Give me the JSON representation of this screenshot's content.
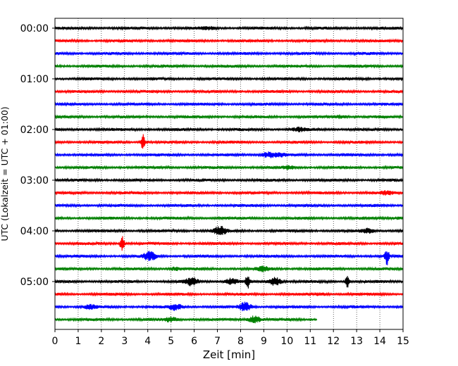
{
  "chart_data": {
    "type": "line",
    "subtype": "helicorder",
    "xlabel": "Zeit  [min]",
    "ylabel": "UTC (Lokalzeit = UTC + 01:00)",
    "xlim": [
      0,
      15
    ],
    "x_ticks": [
      0,
      1,
      2,
      3,
      4,
      5,
      6,
      7,
      8,
      9,
      10,
      11,
      12,
      13,
      14,
      15
    ],
    "y_tick_labels": [
      "00:00",
      "01:00",
      "02:00",
      "03:00",
      "04:00",
      "05:00"
    ],
    "row_interval_min": 15,
    "grid": "vertical dotted",
    "row_colors": [
      "#000000",
      "#ff0000",
      "#0000ff",
      "#008000"
    ],
    "rows": [
      {
        "start": "00:00",
        "end_min": 15,
        "events": [
          {
            "min": 6.6,
            "amp": 1.6
          }
        ]
      },
      {
        "start": "00:15",
        "end_min": 15,
        "events": []
      },
      {
        "start": "00:30",
        "end_min": 15,
        "events": []
      },
      {
        "start": "00:45",
        "end_min": 15,
        "events": []
      },
      {
        "start": "01:00",
        "end_min": 15,
        "events": []
      },
      {
        "start": "01:15",
        "end_min": 15,
        "events": []
      },
      {
        "start": "01:30",
        "end_min": 15,
        "events": []
      },
      {
        "start": "01:45",
        "end_min": 15,
        "events": [
          {
            "min": 12.3,
            "amp": 2.2
          }
        ]
      },
      {
        "start": "02:00",
        "end_min": 15,
        "events": [
          {
            "min": 10.5,
            "amp": 2.2
          }
        ]
      },
      {
        "start": "02:15",
        "end_min": 15,
        "events": [
          {
            "min": 3.8,
            "amp": 12
          }
        ]
      },
      {
        "start": "02:30",
        "end_min": 15,
        "events": [
          {
            "min": 9.2,
            "amp": 3.5
          },
          {
            "min": 9.7,
            "amp": 2
          }
        ]
      },
      {
        "start": "02:45",
        "end_min": 15,
        "events": [
          {
            "min": 10.1,
            "amp": 1.6
          }
        ]
      },
      {
        "start": "03:00",
        "end_min": 15,
        "events": []
      },
      {
        "start": "03:15",
        "end_min": 15,
        "events": [
          {
            "min": 14.3,
            "amp": 2
          }
        ]
      },
      {
        "start": "03:30",
        "end_min": 15,
        "events": []
      },
      {
        "start": "03:45",
        "end_min": 15,
        "events": [
          {
            "min": 14.7,
            "amp": 1.5
          }
        ]
      },
      {
        "start": "04:00",
        "end_min": 15,
        "events": [
          {
            "min": 7.1,
            "amp": 6
          },
          {
            "min": 13.5,
            "amp": 3
          }
        ]
      },
      {
        "start": "04:15",
        "end_min": 15,
        "events": [
          {
            "min": 2.9,
            "amp": 13
          }
        ]
      },
      {
        "start": "04:30",
        "end_min": 15,
        "events": [
          {
            "min": 4.1,
            "amp": 6
          },
          {
            "min": 14.3,
            "amp": 12
          }
        ]
      },
      {
        "start": "04:45",
        "end_min": 15,
        "events": [
          {
            "min": 5.2,
            "amp": 2
          },
          {
            "min": 9.0,
            "amp": 3
          }
        ]
      },
      {
        "start": "05:00",
        "end_min": 15,
        "events": [
          {
            "min": 5.9,
            "amp": 5
          },
          {
            "min": 7.6,
            "amp": 4
          },
          {
            "min": 8.3,
            "amp": 9
          },
          {
            "min": 9.5,
            "amp": 6
          },
          {
            "min": 12.6,
            "amp": 8
          }
        ]
      },
      {
        "start": "05:15",
        "end_min": 15,
        "events": [
          {
            "min": 11.5,
            "amp": 1.5
          }
        ]
      },
      {
        "start": "05:30",
        "end_min": 15,
        "events": [
          {
            "min": 1.5,
            "amp": 2.5
          },
          {
            "min": 5.2,
            "amp": 4
          },
          {
            "min": 8.2,
            "amp": 6
          }
        ]
      },
      {
        "start": "05:45",
        "end_min": 11.3,
        "events": [
          {
            "min": 5.0,
            "amp": 3
          },
          {
            "min": 8.6,
            "amp": 5
          }
        ]
      }
    ]
  }
}
